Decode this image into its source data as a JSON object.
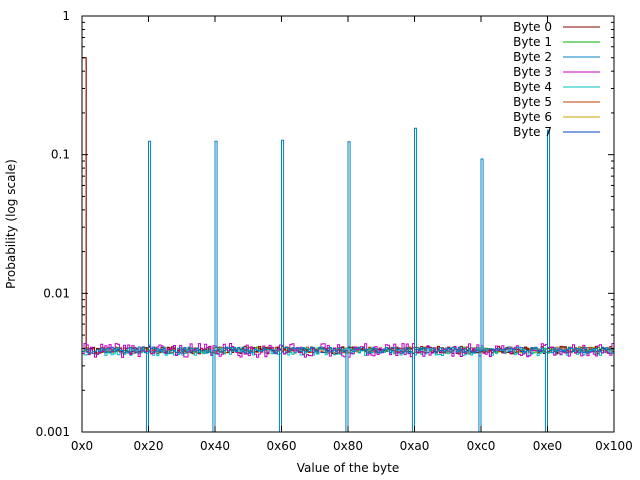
{
  "chart_data": {
    "type": "line",
    "subtype": "step",
    "title": "",
    "xlabel": "Value of the byte",
    "ylabel": "Probability (log scale)",
    "xscale": "linear",
    "yscale": "log",
    "xlim": [
      0,
      256
    ],
    "ylim": [
      0.001,
      1
    ],
    "grid": false,
    "legend_position": "top-right",
    "x_ticks": [
      {
        "value": 0,
        "label": "0x0"
      },
      {
        "value": 32,
        "label": "0x20"
      },
      {
        "value": 64,
        "label": "0x40"
      },
      {
        "value": 96,
        "label": "0x60"
      },
      {
        "value": 128,
        "label": "0x80"
      },
      {
        "value": 160,
        "label": "0xa0"
      },
      {
        "value": 192,
        "label": "0xc0"
      },
      {
        "value": 224,
        "label": "0xe0"
      },
      {
        "value": 256,
        "label": "0x100"
      }
    ],
    "y_ticks": [
      {
        "value": 0.001,
        "label": "0.001"
      },
      {
        "value": 0.01,
        "label": "0.01"
      },
      {
        "value": 0.1,
        "label": "0.1"
      },
      {
        "value": 1,
        "label": "1"
      }
    ],
    "series": [
      {
        "name": "Byte 0",
        "color": "#8b0000",
        "baseline": 0.0039,
        "noise": 0.00025,
        "seed": 11,
        "peaks": [
          {
            "x": 0,
            "y": 0.5
          },
          {
            "x": 1,
            "y": 0.5
          }
        ]
      },
      {
        "name": "Byte 1",
        "color": "#00b000",
        "baseline": 0.0039,
        "noise": 0.0002,
        "seed": 23,
        "peaks": []
      },
      {
        "name": "Byte 2",
        "color": "#0080c0",
        "baseline": 0.0039,
        "noise": 0.0002,
        "seed": 37,
        "peaks": [
          {
            "x": 32,
            "y": 0.125
          },
          {
            "x": 64,
            "y": 0.125
          },
          {
            "x": 96,
            "y": 0.127
          },
          {
            "x": 128,
            "y": 0.124
          },
          {
            "x": 160,
            "y": 0.155
          },
          {
            "x": 192,
            "y": 0.093
          },
          {
            "x": 224,
            "y": 0.15
          }
        ],
        "gaps": [
          32,
          64,
          96,
          128,
          160,
          192,
          224
        ]
      },
      {
        "name": "Byte 3",
        "color": "#c000c0",
        "baseline": 0.0039,
        "noise": 0.00045,
        "seed": 41,
        "peaks": []
      },
      {
        "name": "Byte 4",
        "color": "#00c0c0",
        "baseline": 0.0038,
        "noise": 0.00025,
        "seed": 53,
        "peaks": []
      },
      {
        "name": "Byte 5",
        "color": "#c04000",
        "baseline": 0.0039,
        "noise": 0.0002,
        "seed": 67,
        "peaks": [
          {
            "x": 0,
            "y": 0.5
          },
          {
            "x": 1,
            "y": 0.5
          }
        ]
      },
      {
        "name": "Byte 6",
        "color": "#c8a000",
        "baseline": 0.0039,
        "noise": 0.0002,
        "seed": 79,
        "peaks": []
      },
      {
        "name": "Byte 7",
        "color": "#0040c0",
        "baseline": 0.0039,
        "noise": 0.0002,
        "seed": 83,
        "peaks": []
      }
    ]
  }
}
